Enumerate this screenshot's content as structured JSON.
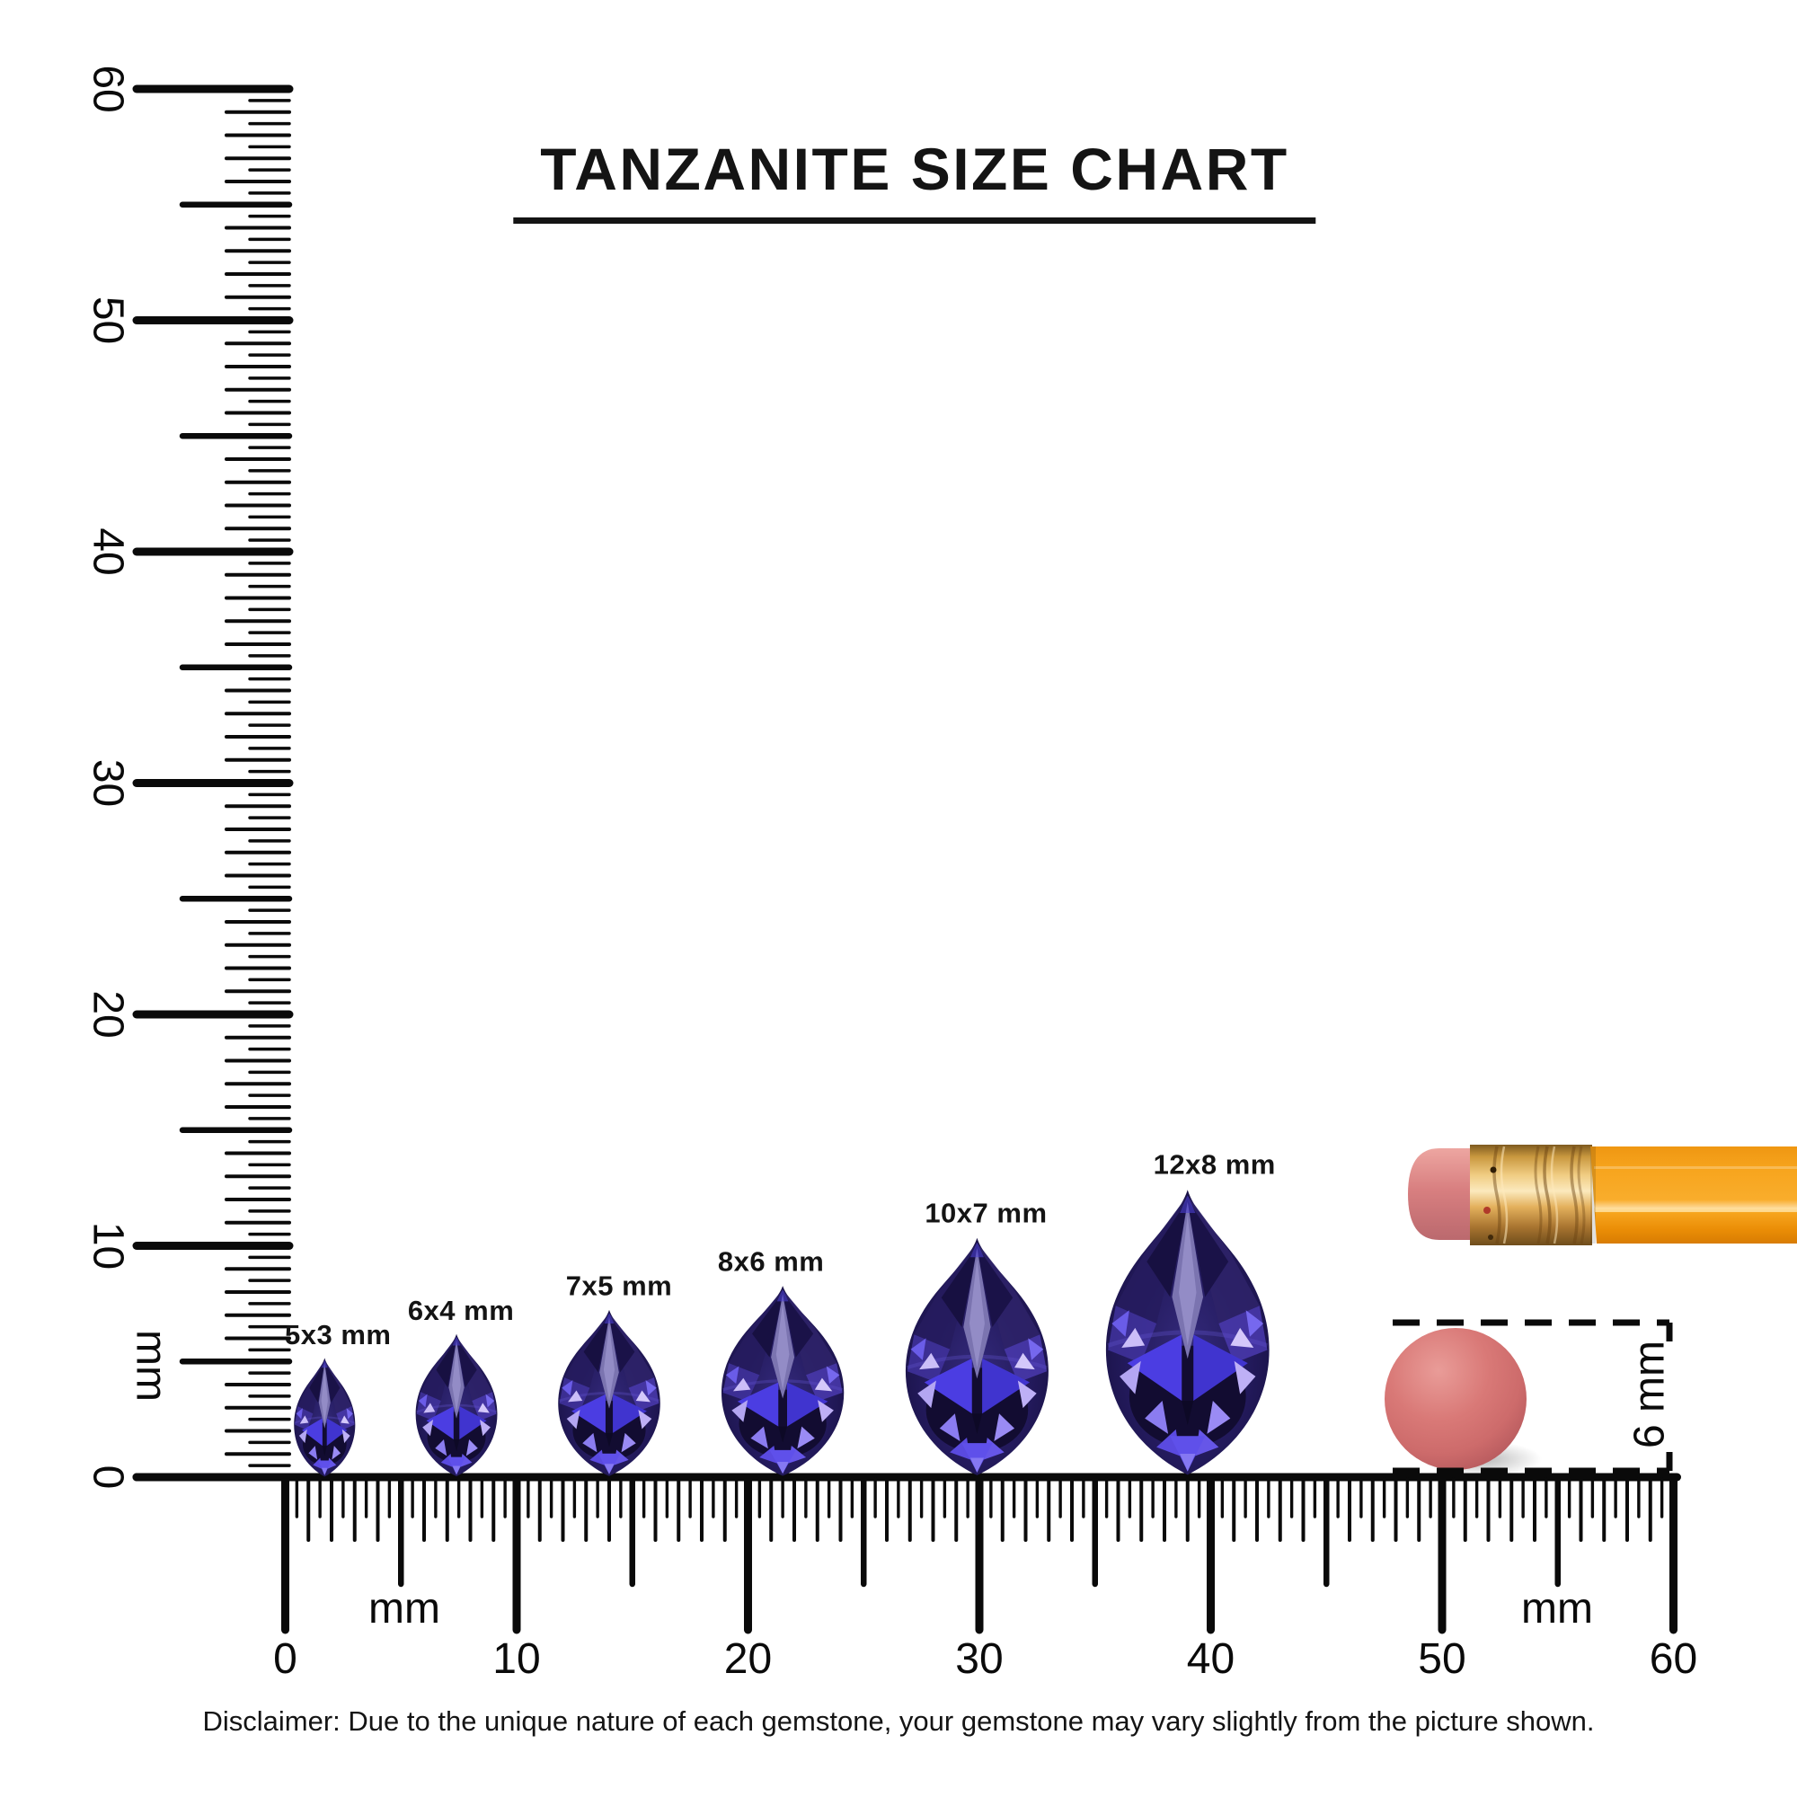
{
  "title": {
    "text": "TANZANITE SIZE CHART"
  },
  "disclaimer": {
    "text": "Disclaimer: Due to the unique nature of each gemstone, your gemstone may vary slightly from the picture shown."
  },
  "rulers": {
    "unit": "mm",
    "vertical": {
      "min_mm": 0,
      "max_mm": 60,
      "tick_step_mm": 0.5,
      "number_step_mm": 10,
      "numbers": [
        "0",
        "10",
        "20",
        "30",
        "40",
        "50",
        "60"
      ],
      "unit_label": "mm"
    },
    "horizontal": {
      "min_mm": 0,
      "max_mm": 60,
      "tick_step_mm": 0.5,
      "number_step_mm": 10,
      "numbers": [
        "0",
        "10",
        "20",
        "30",
        "40",
        "50",
        "60"
      ],
      "unit_labels": [
        "mm",
        "mm"
      ]
    }
  },
  "gems": {
    "stone": "tanzanite",
    "shape": "pear",
    "items": [
      {
        "label": "5x3 mm",
        "height_mm": 5,
        "width_mm": 3,
        "position_mm": 1.7
      },
      {
        "label": "6x4 mm",
        "height_mm": 6,
        "width_mm": 4,
        "position_mm": 7.4
      },
      {
        "label": "7x5 mm",
        "height_mm": 7,
        "width_mm": 5,
        "position_mm": 14.0
      },
      {
        "label": "8x6 mm",
        "height_mm": 8,
        "width_mm": 6,
        "position_mm": 21.5
      },
      {
        "label": "10x7 mm",
        "height_mm": 10,
        "width_mm": 7,
        "position_mm": 29.9
      },
      {
        "label": "12x8 mm",
        "height_mm": 12,
        "width_mm": 8,
        "position_mm": 39.0
      }
    ],
    "palette": {
      "base_dark": "#160f3e",
      "mid_indigo": "#2a2068",
      "bright_blue": "#4b3de2",
      "lavender": "#b4a6f2",
      "pale_flash": "#d4c8fa"
    }
  },
  "scale_references": {
    "pencil": {
      "eraser_color": "#d87f80",
      "ferrule_color": "#e3b05c",
      "body_color": "#f7a51e"
    },
    "eraser_disc": {
      "label": "6 mm",
      "diameter_mm": 6,
      "position_mm": 50.6,
      "color": "#d6716f"
    }
  }
}
